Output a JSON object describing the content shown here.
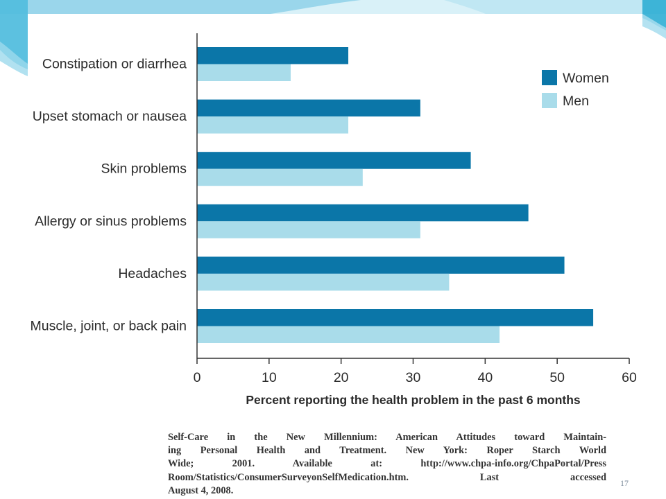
{
  "colors": {
    "women": "#0B76A8",
    "men": "#A9DCEA",
    "axis": "#333333",
    "text": "#2b2b2b",
    "slide_accent": "#2FAED4"
  },
  "chart_data": {
    "type": "bar",
    "orientation": "horizontal",
    "categories": [
      "Constipation or diarrhea",
      "Upset stomach or nausea",
      "Skin problems",
      "Allergy or sinus problems",
      "Headaches",
      "Muscle, joint, or back pain"
    ],
    "series": [
      {
        "name": "Women",
        "values": [
          21,
          31,
          38,
          46,
          51,
          55
        ]
      },
      {
        "name": "Men",
        "values": [
          13,
          21,
          23,
          31,
          35,
          42
        ]
      }
    ],
    "xlabel": "Percent reporting the health problem in the past 6 months",
    "ylabel": "",
    "xlim": [
      0,
      60
    ],
    "xticks": [
      0,
      10,
      20,
      30,
      40,
      50,
      60
    ],
    "grid": false,
    "legend_position": "top-right"
  },
  "citation": {
    "lines": [
      "Self-Care in the New Millennium: American Attitudes toward Maintain-",
      "ing Personal Health and Treatment. New York: Roper Starch World",
      "Wide; 2001. Available at: http://www.chpa-info.org/ChpaPortal/Press",
      "Room/Statistics/ConsumerSurveyonSelfMedication.htm. Last accessed",
      "August 4, 2008."
    ]
  },
  "slide": {
    "page_number": "17"
  }
}
